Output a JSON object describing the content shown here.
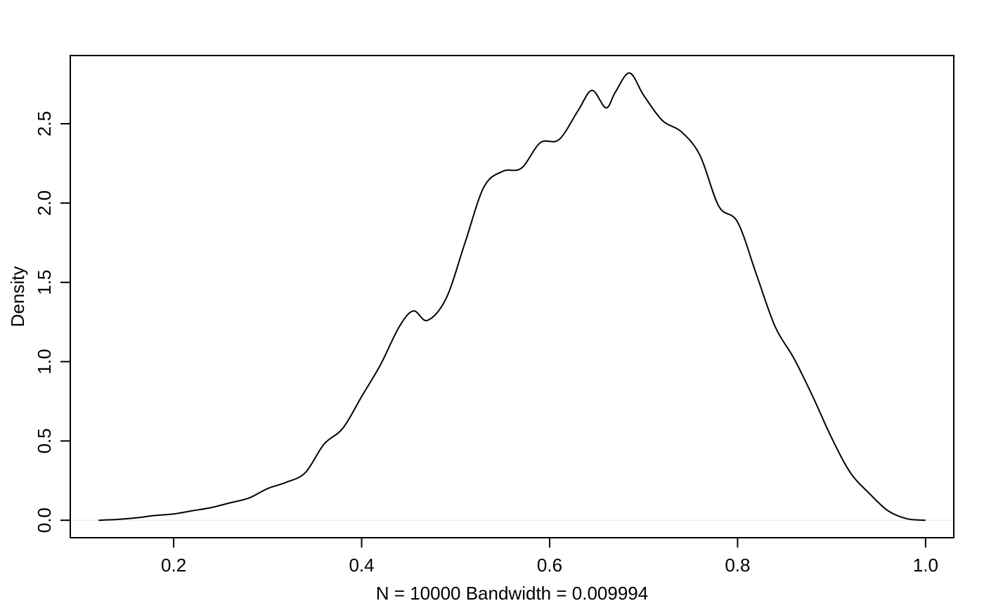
{
  "chart_data": {
    "type": "line",
    "title": "",
    "xlabel": "N = 10000   Bandwidth = 0.009994",
    "ylabel": "Density",
    "xlim": [
      0.09,
      1.03
    ],
    "ylim": [
      -0.11,
      2.93
    ],
    "xticks": [
      0.2,
      0.4,
      0.6,
      0.8,
      1.0
    ],
    "xtick_labels": [
      "0.2",
      "0.4",
      "0.6",
      "0.8",
      "1.0"
    ],
    "yticks": [
      0.0,
      0.5,
      1.0,
      1.5,
      2.0,
      2.5
    ],
    "ytick_labels": [
      "0.0",
      "0.5",
      "1.0",
      "1.5",
      "2.0",
      "2.5"
    ],
    "grid": false,
    "baseline": 0,
    "colors": {
      "line": "#000000",
      "baseline": "#e5e5e5",
      "frame": "#000000"
    },
    "series": [
      {
        "x": [
          0.12,
          0.14,
          0.16,
          0.18,
          0.2,
          0.22,
          0.24,
          0.26,
          0.28,
          0.3,
          0.32,
          0.34,
          0.36,
          0.38,
          0.4,
          0.42,
          0.44,
          0.455,
          0.47,
          0.49,
          0.51,
          0.53,
          0.55,
          0.57,
          0.59,
          0.61,
          0.63,
          0.645,
          0.66,
          0.67,
          0.685,
          0.7,
          0.72,
          0.74,
          0.76,
          0.78,
          0.8,
          0.82,
          0.84,
          0.86,
          0.88,
          0.9,
          0.92,
          0.94,
          0.96,
          0.98,
          1.0
        ],
        "values": [
          0.0,
          0.005,
          0.015,
          0.03,
          0.04,
          0.06,
          0.08,
          0.11,
          0.14,
          0.2,
          0.24,
          0.3,
          0.48,
          0.58,
          0.78,
          0.98,
          1.22,
          1.32,
          1.26,
          1.4,
          1.75,
          2.1,
          2.2,
          2.22,
          2.38,
          2.4,
          2.58,
          2.71,
          2.6,
          2.7,
          2.82,
          2.68,
          2.52,
          2.45,
          2.3,
          1.98,
          1.88,
          1.55,
          1.22,
          1.02,
          0.78,
          0.52,
          0.3,
          0.17,
          0.06,
          0.01,
          0.0
        ]
      }
    ]
  }
}
